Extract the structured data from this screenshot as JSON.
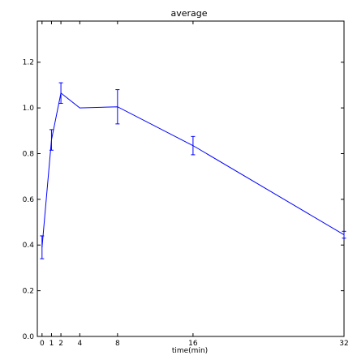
{
  "chart_data": {
    "type": "line",
    "title": "average",
    "xlabel": "time(min)",
    "ylabel": "",
    "x": [
      0,
      1,
      2,
      4,
      8,
      16,
      32
    ],
    "xticks": [
      0,
      1,
      2,
      4,
      8,
      16,
      32
    ],
    "yticks": [
      0.0,
      0.2,
      0.4,
      0.6,
      0.8,
      1.0,
      1.2
    ],
    "xlim": [
      -0.5,
      32
    ],
    "ylim": [
      0,
      1.38
    ],
    "grid": false,
    "legend": "none",
    "series": [
      {
        "values": [
          0.39,
          0.86,
          1.065,
          1.0,
          1.005,
          0.835,
          0.445
        ],
        "errors": [
          0.05,
          0.045,
          0.045,
          0.0,
          0.075,
          0.04,
          0.015
        ],
        "color": "#0000ff"
      }
    ]
  }
}
